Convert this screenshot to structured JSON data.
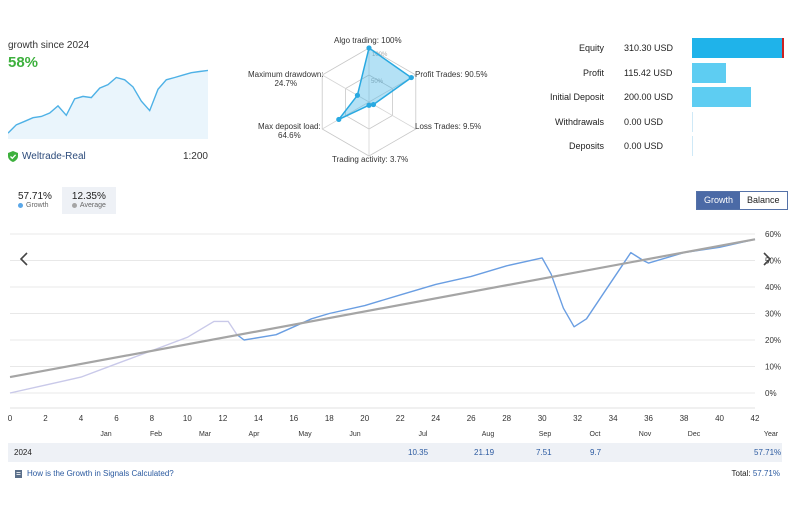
{
  "summary": {
    "growth_since": "growth since 2024",
    "growth_value": "58%",
    "broker": "Weltrade-Real",
    "leverage": "1:200",
    "broker_icon": "shield-check-icon",
    "mini_chart_values": [
      5,
      12,
      15,
      18,
      19,
      22,
      28,
      20,
      34,
      36,
      35,
      43,
      46,
      52,
      50,
      44,
      32,
      24,
      42,
      50,
      52,
      54,
      56,
      57,
      58
    ]
  },
  "radar": {
    "algo": "Algo trading: 100%",
    "profit_trades": "Profit Trades: 90.5%",
    "loss_trades": "Loss Trades: 9.5%",
    "trading_activity": "Trading activity: 3.7%",
    "max_deposit_load": "Max deposit load:",
    "max_deposit_load_value": "64.6%",
    "max_drawdown": "Maximum drawdown:",
    "max_drawdown_value": "24.7%",
    "grid_100": "100%",
    "grid_50": "50%",
    "values": [
      100,
      90.5,
      9.5,
      3.7,
      64.6,
      24.7
    ],
    "color": "#29a9e1"
  },
  "stats": [
    {
      "label": "Equity",
      "value": "310.30 USD",
      "fraction": 1.0,
      "color": "#1fb3ea"
    },
    {
      "label": "Profit",
      "value": "115.42 USD",
      "fraction": 0.37,
      "color": "#5ecdf2"
    },
    {
      "label": "Initial Deposit",
      "value": "200.00 USD",
      "fraction": 0.64,
      "color": "#5ecdf2"
    },
    {
      "label": "Withdrawals",
      "value": "0.00 USD",
      "fraction": 0,
      "color": "#5ecdf2"
    },
    {
      "label": "Deposits",
      "value": "0.00 USD",
      "fraction": 0,
      "color": "#5ecdf2"
    }
  ],
  "tabs": {
    "growth_value": "57.71%",
    "growth_label": "Growth",
    "average_value": "12.35%",
    "average_label": "Average"
  },
  "mode": {
    "growth": "Growth",
    "balance": "Balance"
  },
  "chart_data": {
    "type": "line",
    "x_ticks": [
      "0",
      "2",
      "4",
      "6",
      "8",
      "10",
      "12",
      "14",
      "16",
      "18",
      "20",
      "22",
      "24",
      "26",
      "28",
      "30",
      "32",
      "34",
      "36",
      "38",
      "40",
      "42"
    ],
    "y_ticks": [
      "60%",
      "50%",
      "40%",
      "30%",
      "20%",
      "10%",
      "0%"
    ],
    "months": [
      "Jan",
      "Feb",
      "Mar",
      "Apr",
      "May",
      "Jun",
      "Jul",
      "Aug",
      "Sep",
      "Oct",
      "Nov",
      "Dec",
      "Year"
    ],
    "xlim": [
      0,
      42
    ],
    "ylim": [
      -5,
      60
    ],
    "growth_series": [
      [
        0,
        0
      ],
      [
        2,
        3
      ],
      [
        4,
        6
      ],
      [
        6,
        11
      ],
      [
        8,
        16
      ],
      [
        10,
        21
      ],
      [
        11.5,
        27
      ],
      [
        12.3,
        27
      ],
      [
        12.8,
        22
      ],
      [
        13.2,
        20
      ],
      [
        15,
        22
      ],
      [
        16,
        25
      ],
      [
        17,
        28
      ],
      [
        18,
        30
      ],
      [
        20,
        33
      ],
      [
        22,
        37
      ],
      [
        24,
        41
      ],
      [
        26,
        44
      ],
      [
        28,
        48
      ],
      [
        30,
        51
      ],
      [
        30.5,
        45
      ],
      [
        31.2,
        32
      ],
      [
        31.8,
        25
      ],
      [
        32.5,
        28
      ],
      [
        33.5,
        38
      ],
      [
        34.5,
        48
      ],
      [
        35,
        53
      ],
      [
        35.7,
        50
      ],
      [
        36,
        49
      ],
      [
        38,
        53
      ],
      [
        40,
        55
      ],
      [
        42,
        58
      ]
    ],
    "trend_series": [
      [
        0,
        6
      ],
      [
        42,
        58
      ]
    ],
    "growth_color": "#6a9ee2",
    "trend_color": "#a5a5a5"
  },
  "year_row": {
    "year": "2024",
    "jul": "10.35",
    "aug": "21.19",
    "sep": "7.51",
    "oct": "9.7",
    "year_total": "57.71%"
  },
  "footer": {
    "link": "How is the Growth in Signals Calculated?",
    "total_label": "Total:",
    "total_value": "57.71%"
  }
}
